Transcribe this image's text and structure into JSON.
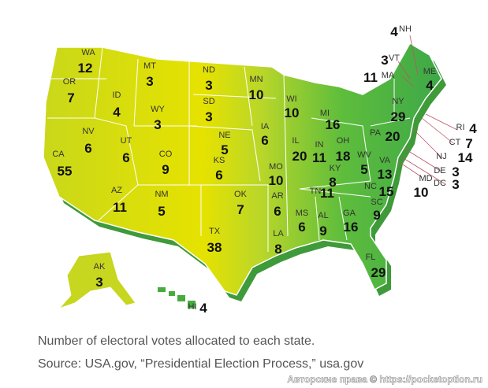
{
  "states": [
    {
      "abbr": "WA",
      "votes": 12
    },
    {
      "abbr": "OR",
      "votes": 7
    },
    {
      "abbr": "CA",
      "votes": 55
    },
    {
      "abbr": "NV",
      "votes": 6
    },
    {
      "abbr": "ID",
      "votes": 4
    },
    {
      "abbr": "MT",
      "votes": 3
    },
    {
      "abbr": "WY",
      "votes": 3
    },
    {
      "abbr": "UT",
      "votes": 6
    },
    {
      "abbr": "CO",
      "votes": 9
    },
    {
      "abbr": "AZ",
      "votes": 11
    },
    {
      "abbr": "NM",
      "votes": 5
    },
    {
      "abbr": "ND",
      "votes": 3
    },
    {
      "abbr": "SD",
      "votes": 3
    },
    {
      "abbr": "NE",
      "votes": 5
    },
    {
      "abbr": "KS",
      "votes": 6
    },
    {
      "abbr": "OK",
      "votes": 7
    },
    {
      "abbr": "TX",
      "votes": 38
    },
    {
      "abbr": "MN",
      "votes": 10
    },
    {
      "abbr": "IA",
      "votes": 6
    },
    {
      "abbr": "MO",
      "votes": 10
    },
    {
      "abbr": "AR",
      "votes": 6
    },
    {
      "abbr": "LA",
      "votes": 8
    },
    {
      "abbr": "WI",
      "votes": 10
    },
    {
      "abbr": "IL",
      "votes": 20
    },
    {
      "abbr": "MI",
      "votes": 16
    },
    {
      "abbr": "IN",
      "votes": 11
    },
    {
      "abbr": "OH",
      "votes": 18
    },
    {
      "abbr": "KY",
      "votes": 8
    },
    {
      "abbr": "TN",
      "votes": 11
    },
    {
      "abbr": "MS",
      "votes": 6
    },
    {
      "abbr": "AL",
      "votes": 9
    },
    {
      "abbr": "GA",
      "votes": 16
    },
    {
      "abbr": "FL",
      "votes": 29
    },
    {
      "abbr": "SC",
      "votes": 9
    },
    {
      "abbr": "NC",
      "votes": 15
    },
    {
      "abbr": "VA",
      "votes": 13
    },
    {
      "abbr": "WV",
      "votes": 5
    },
    {
      "abbr": "PA",
      "votes": 20
    },
    {
      "abbr": "NY",
      "votes": 29
    },
    {
      "abbr": "ME",
      "votes": 4
    },
    {
      "abbr": "AK",
      "votes": 3
    },
    {
      "abbr": "HI",
      "votes": 4
    },
    {
      "abbr": "NH",
      "votes": 4
    },
    {
      "abbr": "VT",
      "votes": 3
    },
    {
      "abbr": "MA",
      "votes": 11
    },
    {
      "abbr": "RI",
      "votes": 4
    },
    {
      "abbr": "CT",
      "votes": 7
    },
    {
      "abbr": "NJ",
      "votes": 14
    },
    {
      "abbr": "DE",
      "votes": 3
    },
    {
      "abbr": "DC",
      "votes": 3
    },
    {
      "abbr": "MD",
      "votes": 10
    }
  ],
  "caption": [
    "Number of electoral votes allocated to each state.",
    "Source: USA.gov, “Presidential Election Process,” usa.gov"
  ],
  "watermark": "Авторские права © https://pocketoption.ru"
}
